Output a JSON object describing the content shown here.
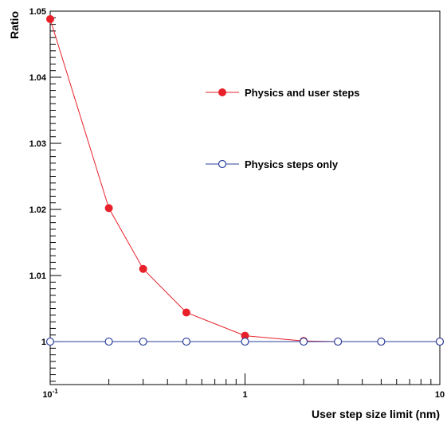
{
  "chart_data": {
    "type": "line",
    "title": "",
    "xlabel": "User step size limit (nm)",
    "ylabel": "Ratio",
    "xscale": "log",
    "xlim": [
      0.1,
      10
    ],
    "ylim": [
      0.9935,
      1.05
    ],
    "x_tick_labels": [
      {
        "value": 0.1,
        "base": "10",
        "exp": "-1"
      },
      {
        "value": 1,
        "base": "1",
        "exp": ""
      },
      {
        "value": 10,
        "base": "10",
        "exp": ""
      }
    ],
    "y_ticks": [
      {
        "value": 1.0,
        "label": "1"
      },
      {
        "value": 1.01,
        "label": "1.01"
      },
      {
        "value": 1.02,
        "label": "1.02"
      },
      {
        "value": 1.03,
        "label": "1.03"
      },
      {
        "value": 1.04,
        "label": "1.04"
      },
      {
        "value": 1.05,
        "label": "1.05"
      }
    ],
    "grid": false,
    "legend_position": "upper-right (inside plot)",
    "series": [
      {
        "name": "Physics and user steps",
        "color": "#e8202a",
        "marker": "filled-circle",
        "x": [
          0.1,
          0.2,
          0.3,
          0.5,
          1,
          2,
          3,
          5,
          10
        ],
        "y": [
          1.0488,
          1.0202,
          1.011,
          1.0044,
          1.0009,
          1.0001,
          1.0,
          1.0,
          1.0
        ]
      },
      {
        "name": "Physics steps only",
        "color": "#2b3f9b",
        "marker": "open-circle",
        "x": [
          0.1,
          0.2,
          0.3,
          0.5,
          1,
          2,
          3,
          5,
          10
        ],
        "y": [
          1.0,
          1.0,
          1.0,
          1.0,
          1.0,
          1.0,
          1.0,
          1.0,
          1.0
        ]
      }
    ]
  }
}
